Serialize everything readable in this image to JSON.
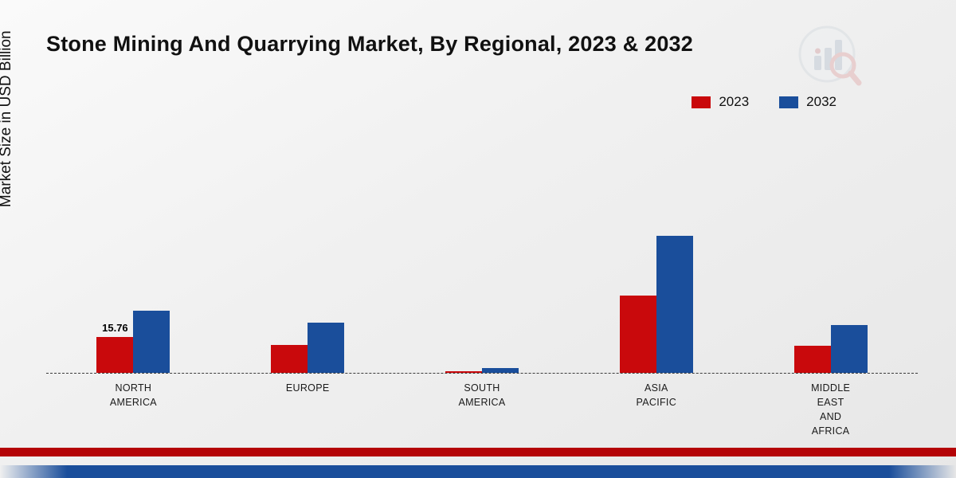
{
  "title": "Stone Mining And Quarrying Market, By Regional, 2023 & 2032",
  "ylabel": "Market Size in USD Billion",
  "colors": {
    "series_2023": "#c9090c",
    "series_2032": "#1a4e9b",
    "footer_red": "#b40407",
    "footer_blue": "#1a4e9b"
  },
  "chart_data": {
    "type": "bar",
    "title": "Stone Mining And Quarrying Market, By Regional, 2023 & 2032",
    "xlabel": "",
    "ylabel": "Market Size in USD Billion",
    "ylim": [
      0,
      65
    ],
    "grid": false,
    "legend_position": "top-right",
    "categories": [
      "NORTH AMERICA",
      "EUROPE",
      "SOUTH AMERICA",
      "ASIA PACIFIC",
      "MIDDLE EAST AND AFRICA"
    ],
    "category_label_lines": [
      [
        "NORTH",
        "AMERICA"
      ],
      [
        "EUROPE"
      ],
      [
        "SOUTH",
        "AMERICA"
      ],
      [
        "ASIA",
        "PACIFIC"
      ],
      [
        "MIDDLE",
        "EAST",
        "AND",
        "AFRICA"
      ]
    ],
    "series": [
      {
        "name": "2023",
        "color": "#c9090c",
        "values": [
          15.76,
          12.4,
          0.8,
          33.8,
          11.9
        ]
      },
      {
        "name": "2032",
        "color": "#1a4e9b",
        "values": [
          27.2,
          22.1,
          2.0,
          60.2,
          20.9
        ]
      }
    ],
    "annotations": [
      {
        "category": "NORTH AMERICA",
        "series": "2023",
        "text": "15.76"
      }
    ]
  }
}
